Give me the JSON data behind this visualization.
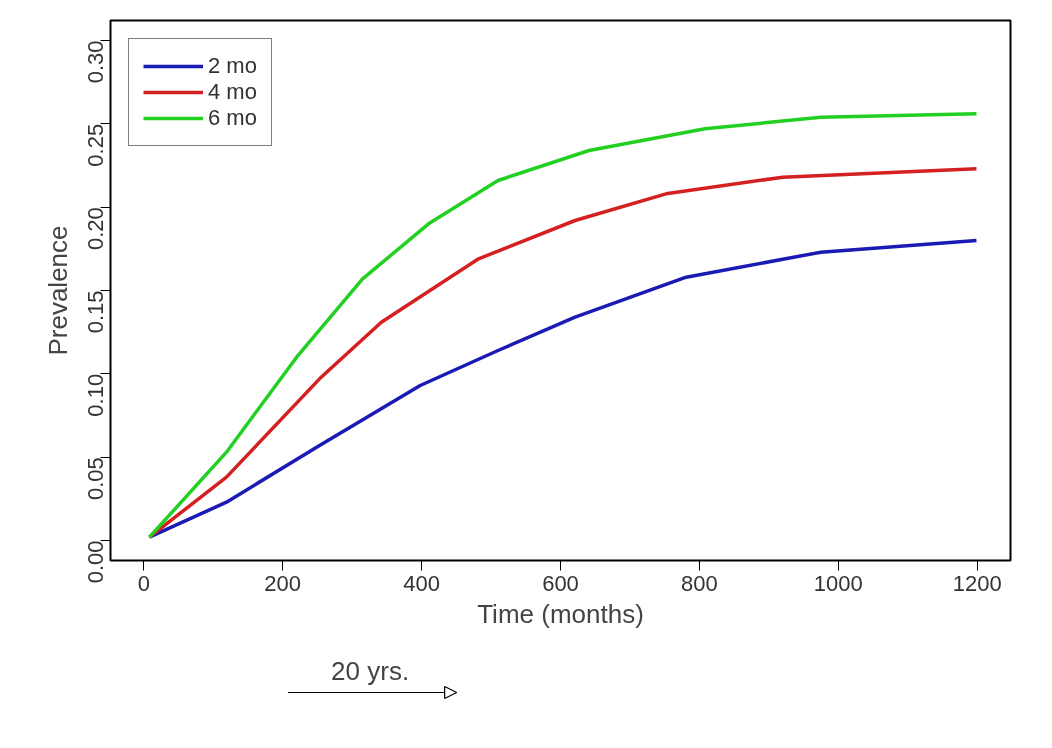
{
  "chart_data": {
    "type": "line",
    "xlabel": "Time (months)",
    "ylabel": "Prevalence",
    "annotations": [
      "20 yrs."
    ],
    "xlim": [
      -48,
      1248
    ],
    "ylim": [
      -0.012,
      0.312
    ],
    "xticks": [
      0,
      200,
      400,
      600,
      800,
      1000,
      1200
    ],
    "yticks": [
      {
        "value": 0,
        "label": "0.00"
      },
      {
        "value": 0.05,
        "label": "0.05"
      },
      {
        "value": 0.1,
        "label": "0.10"
      },
      {
        "value": 0.15,
        "label": "0.15"
      },
      {
        "value": 0.2,
        "label": "0.20"
      },
      {
        "value": 0.25,
        "label": "0.25"
      },
      {
        "value": 0.3,
        "label": "0.30"
      }
    ],
    "grid": false,
    "legend": "top left",
    "line_style": "solid",
    "series": [
      {
        "name": "2 mo",
        "color": "#1a1ab4",
        "x": [
          8,
          119,
          253,
          398,
          510,
          621,
          781,
          975,
          1199
        ],
        "values": [
          0.002,
          0.023,
          0.057,
          0.093,
          0.114,
          0.134,
          0.158,
          0.173,
          0.18
        ]
      },
      {
        "name": "4 mo",
        "color": "#d42020",
        "x": [
          8,
          119,
          253,
          342,
          482,
          621,
          752,
          920,
          1199
        ],
        "values": [
          0.002,
          0.038,
          0.097,
          0.131,
          0.169,
          0.192,
          0.208,
          0.218,
          0.223
        ]
      },
      {
        "name": "6 mo",
        "color": "#22d022",
        "x": [
          8,
          119,
          220,
          315,
          410,
          510,
          641,
          808,
          975,
          1199
        ],
        "values": [
          0.002,
          0.053,
          0.11,
          0.157,
          0.19,
          0.216,
          0.234,
          0.247,
          0.254,
          0.256
        ]
      }
    ]
  }
}
